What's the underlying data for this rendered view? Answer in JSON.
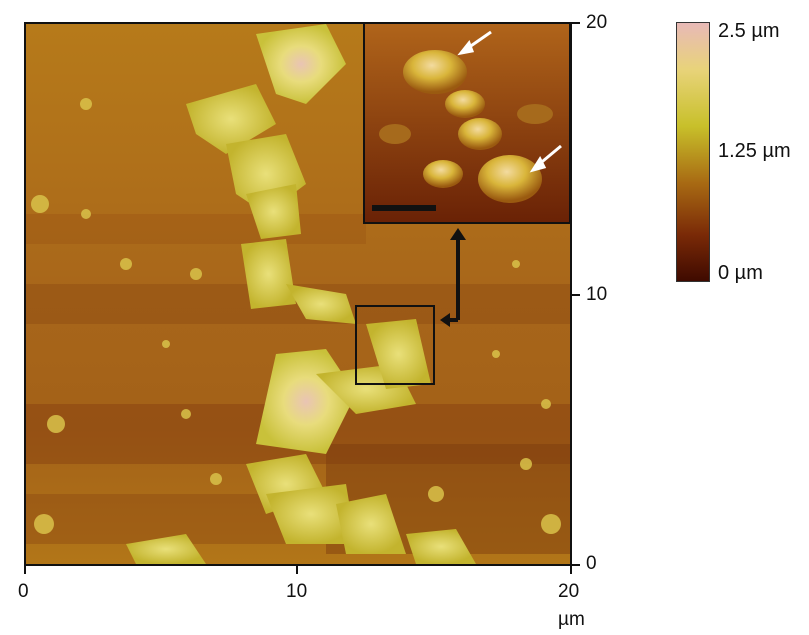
{
  "figure": {
    "x_axis": {
      "ticks": [
        "0",
        "10",
        "20"
      ],
      "unit": "µm"
    },
    "y_axis": {
      "ticks": [
        "20",
        "10",
        "0"
      ]
    },
    "colorbar": {
      "labels": [
        "2.5 µm",
        "1.25 µm",
        "0 µm"
      ]
    },
    "inset": {
      "arrow_icon": "white-arrow-icon"
    }
  }
}
